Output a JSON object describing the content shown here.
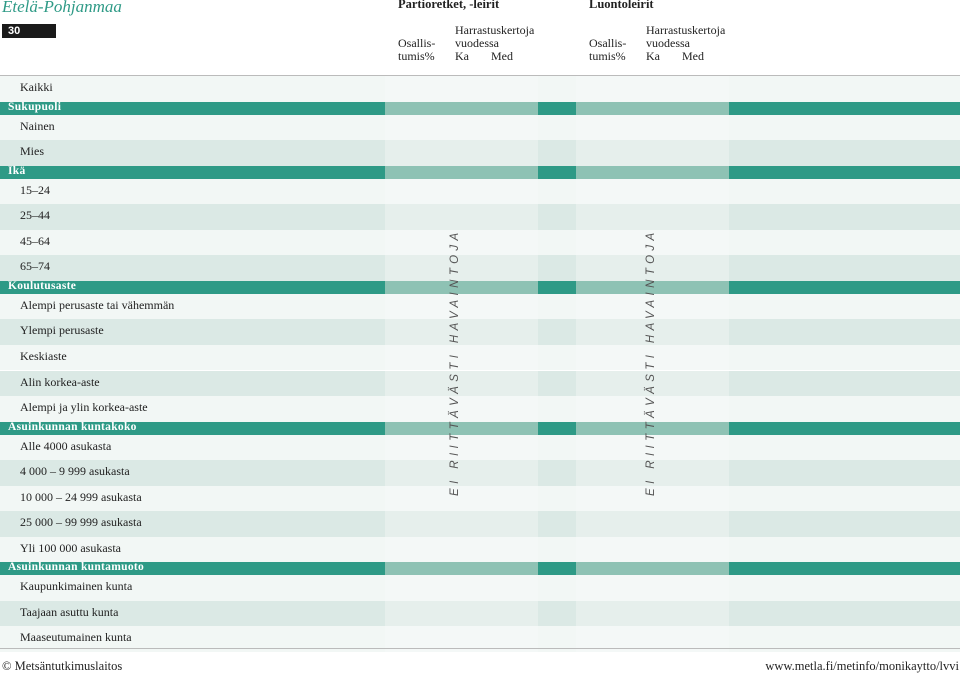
{
  "header": {
    "region": "Etelä-Pohjanmaa",
    "page_number": "30",
    "groups": [
      {
        "title": "Partioretket, -leirit",
        "participation": [
          "Osallis-",
          "tumis%"
        ],
        "frequency": [
          "Harrastuskertoja",
          "vuodessa"
        ],
        "mean": "Ka",
        "median": "Med"
      },
      {
        "title": "Luontoleirit",
        "participation": [
          "Osallis-",
          "tumis%"
        ],
        "frequency": [
          "Harrastuskertoja",
          "vuodessa"
        ],
        "mean": "Ka",
        "median": "Med"
      }
    ]
  },
  "table": {
    "rows": [
      {
        "type": "data",
        "label": "Kaikki"
      },
      {
        "type": "section",
        "label": "Sukupuoli"
      },
      {
        "type": "data",
        "label": "Nainen"
      },
      {
        "type": "data",
        "label": "Mies"
      },
      {
        "type": "section",
        "label": "Ikä"
      },
      {
        "type": "data",
        "label": "15–24"
      },
      {
        "type": "data",
        "label": "25–44"
      },
      {
        "type": "data",
        "label": "45–64"
      },
      {
        "type": "data",
        "label": "65–74"
      },
      {
        "type": "section",
        "label": "Koulutusaste"
      },
      {
        "type": "data",
        "label": "Alempi perusaste tai vähemmän"
      },
      {
        "type": "data",
        "label": "Ylempi perusaste"
      },
      {
        "type": "data",
        "label": "Keskiaste"
      },
      {
        "type": "data",
        "label": "Alin korkea-aste"
      },
      {
        "type": "data",
        "label": "Alempi ja ylin korkea-aste"
      },
      {
        "type": "section",
        "label": "Asuinkunnan kuntakoko"
      },
      {
        "type": "data",
        "label": "Alle 4000 asukasta"
      },
      {
        "type": "data",
        "label": "4 000 – 9 999 asukasta"
      },
      {
        "type": "data",
        "label": "10 000 – 24 999 asukasta"
      },
      {
        "type": "data",
        "label": "25 000 – 99 999 asukasta"
      },
      {
        "type": "data",
        "label": "Yli 100 000 asukasta"
      },
      {
        "type": "section",
        "label": "Asuinkunnan kuntamuoto"
      },
      {
        "type": "data",
        "label": "Kaupunkimainen kunta"
      },
      {
        "type": "data",
        "label": "Taajaan asuttu kunta"
      },
      {
        "type": "data",
        "label": "Maaseutumainen kunta"
      }
    ],
    "insufficient_note": "EI RIITTÄVÄSTI HAVAINTOJA"
  },
  "footer": {
    "copyright": "© Metsäntutkimuslaitos",
    "url": "www.metla.fi/metinfo/monikaytto/lvvi"
  },
  "colors": {
    "accent": "#2e9a86",
    "section_band_light": "#8ec2b4",
    "row_dark": "#dbe9e5",
    "row_light": "#f2f7f5"
  }
}
